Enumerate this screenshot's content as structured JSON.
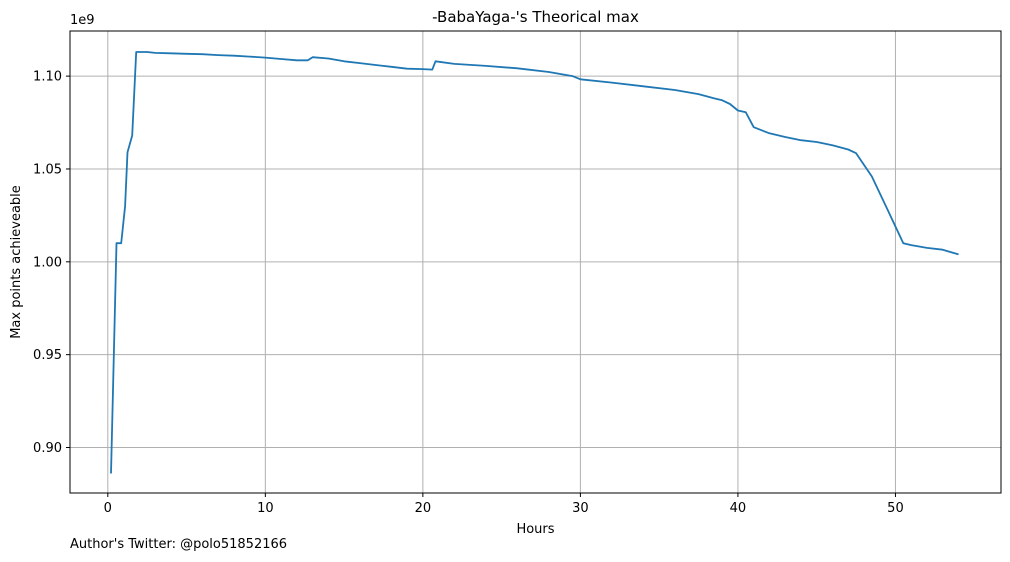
{
  "chart_data": {
    "type": "line",
    "title": "-BabaYaga-'s Theorical max",
    "xlabel": "Hours",
    "ylabel": "Max points achieveable",
    "y_offset_label": "1e9",
    "xlim": [
      -2.4,
      56.7
    ],
    "ylim": [
      0.8755,
      1.1243
    ],
    "x_ticks": [
      0,
      10,
      20,
      30,
      40,
      50
    ],
    "y_ticks": [
      0.9,
      0.95,
      1.0,
      1.05,
      1.1
    ],
    "x_tick_labels": [
      "0",
      "10",
      "20",
      "30",
      "40",
      "50"
    ],
    "y_tick_labels": [
      "0.90",
      "0.95",
      "1.00",
      "1.05",
      "1.10"
    ],
    "grid": true,
    "series": [
      {
        "color": "#1f77b4",
        "x": [
          0.2,
          0.55,
          0.85,
          1.1,
          1.25,
          1.55,
          1.8,
          2.0,
          2.5,
          3.0,
          4.0,
          5.0,
          6.0,
          7.0,
          8.0,
          9.0,
          10.0,
          11.0,
          12.0,
          12.7,
          13.0,
          14.0,
          15.0,
          16.0,
          17.0,
          18.0,
          19.0,
          20.0,
          20.6,
          20.8,
          22.0,
          24.0,
          26.0,
          28.0,
          29.5,
          30.0,
          32.0,
          34.0,
          36.0,
          37.5,
          38.5,
          39.0,
          39.5,
          40.0,
          40.5,
          41.0,
          42.0,
          43.0,
          44.0,
          45.0,
          46.0,
          47.0,
          47.5,
          48.5,
          49.5,
          50.5,
          51.0,
          52.0,
          53.0,
          54.0
        ],
        "y": [
          0.886,
          1.01,
          1.01,
          1.03,
          1.059,
          1.068,
          1.113,
          1.113,
          1.113,
          1.1125,
          1.1123,
          1.112,
          1.1118,
          1.1113,
          1.111,
          1.1105,
          1.11,
          1.1092,
          1.1085,
          1.1085,
          1.1102,
          1.1095,
          1.108,
          1.107,
          1.106,
          1.105,
          1.104,
          1.1038,
          1.1035,
          1.108,
          1.1066,
          1.1055,
          1.1042,
          1.1022,
          1.1,
          1.0983,
          1.0965,
          1.0945,
          1.0925,
          1.0903,
          1.088,
          1.087,
          1.085,
          1.0815,
          1.0805,
          1.0725,
          1.0692,
          1.0672,
          1.0655,
          1.0645,
          1.0628,
          1.0605,
          1.0585,
          1.046,
          1.028,
          1.01,
          1.009,
          1.0075,
          1.0065,
          1.004
        ]
      }
    ]
  },
  "footnote": "Author's Twitter: @polo51852166"
}
